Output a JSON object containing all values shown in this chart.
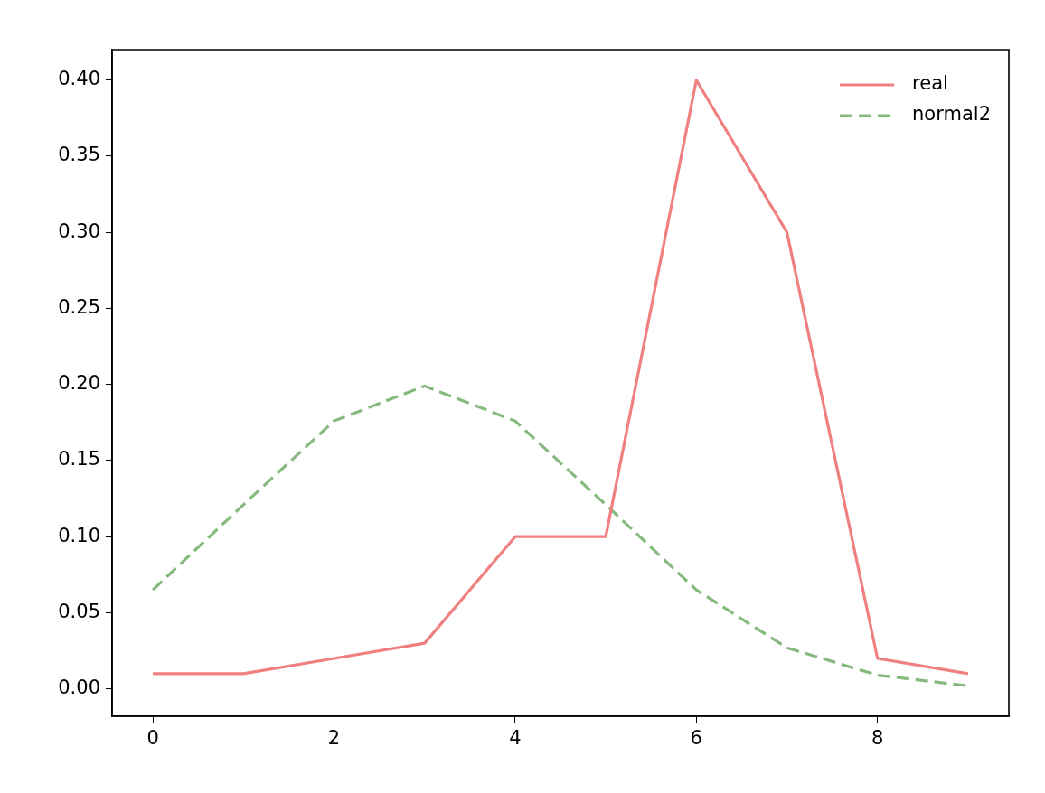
{
  "chart_data": {
    "type": "line",
    "x": [
      0,
      1,
      2,
      3,
      4,
      5,
      6,
      7,
      8,
      9
    ],
    "series": [
      {
        "name": "real",
        "color": "#f08080",
        "line_style": "solid",
        "values": [
          0.01,
          0.01,
          0.02,
          0.03,
          0.1,
          0.1,
          0.4,
          0.3,
          0.02,
          0.01
        ]
      },
      {
        "name": "normal2",
        "color": "#86b97e",
        "line_style": "dashed",
        "values": [
          0.065,
          0.121,
          0.176,
          0.199,
          0.176,
          0.121,
          0.065,
          0.027,
          0.009,
          0.002
        ]
      }
    ],
    "xlim": [
      -0.45,
      9.45
    ],
    "xticks": [
      0,
      2,
      4,
      6,
      8
    ],
    "ylim": [
      -0.018,
      0.42
    ],
    "yticks": [
      {
        "value": 0,
        "label": "0.00"
      },
      {
        "value": 0.05,
        "label": "0.05"
      },
      {
        "value": 0.1,
        "label": "0.10"
      },
      {
        "value": 0.15,
        "label": "0.15"
      },
      {
        "value": 0.2,
        "label": "0.20"
      },
      {
        "value": 0.25,
        "label": "0.25"
      },
      {
        "value": 0.3,
        "label": "0.30"
      },
      {
        "value": 0.35,
        "label": "0.35"
      },
      {
        "value": 0.4,
        "label": "0.40"
      }
    ],
    "grid": false,
    "legend": "top right",
    "marker": "none"
  }
}
